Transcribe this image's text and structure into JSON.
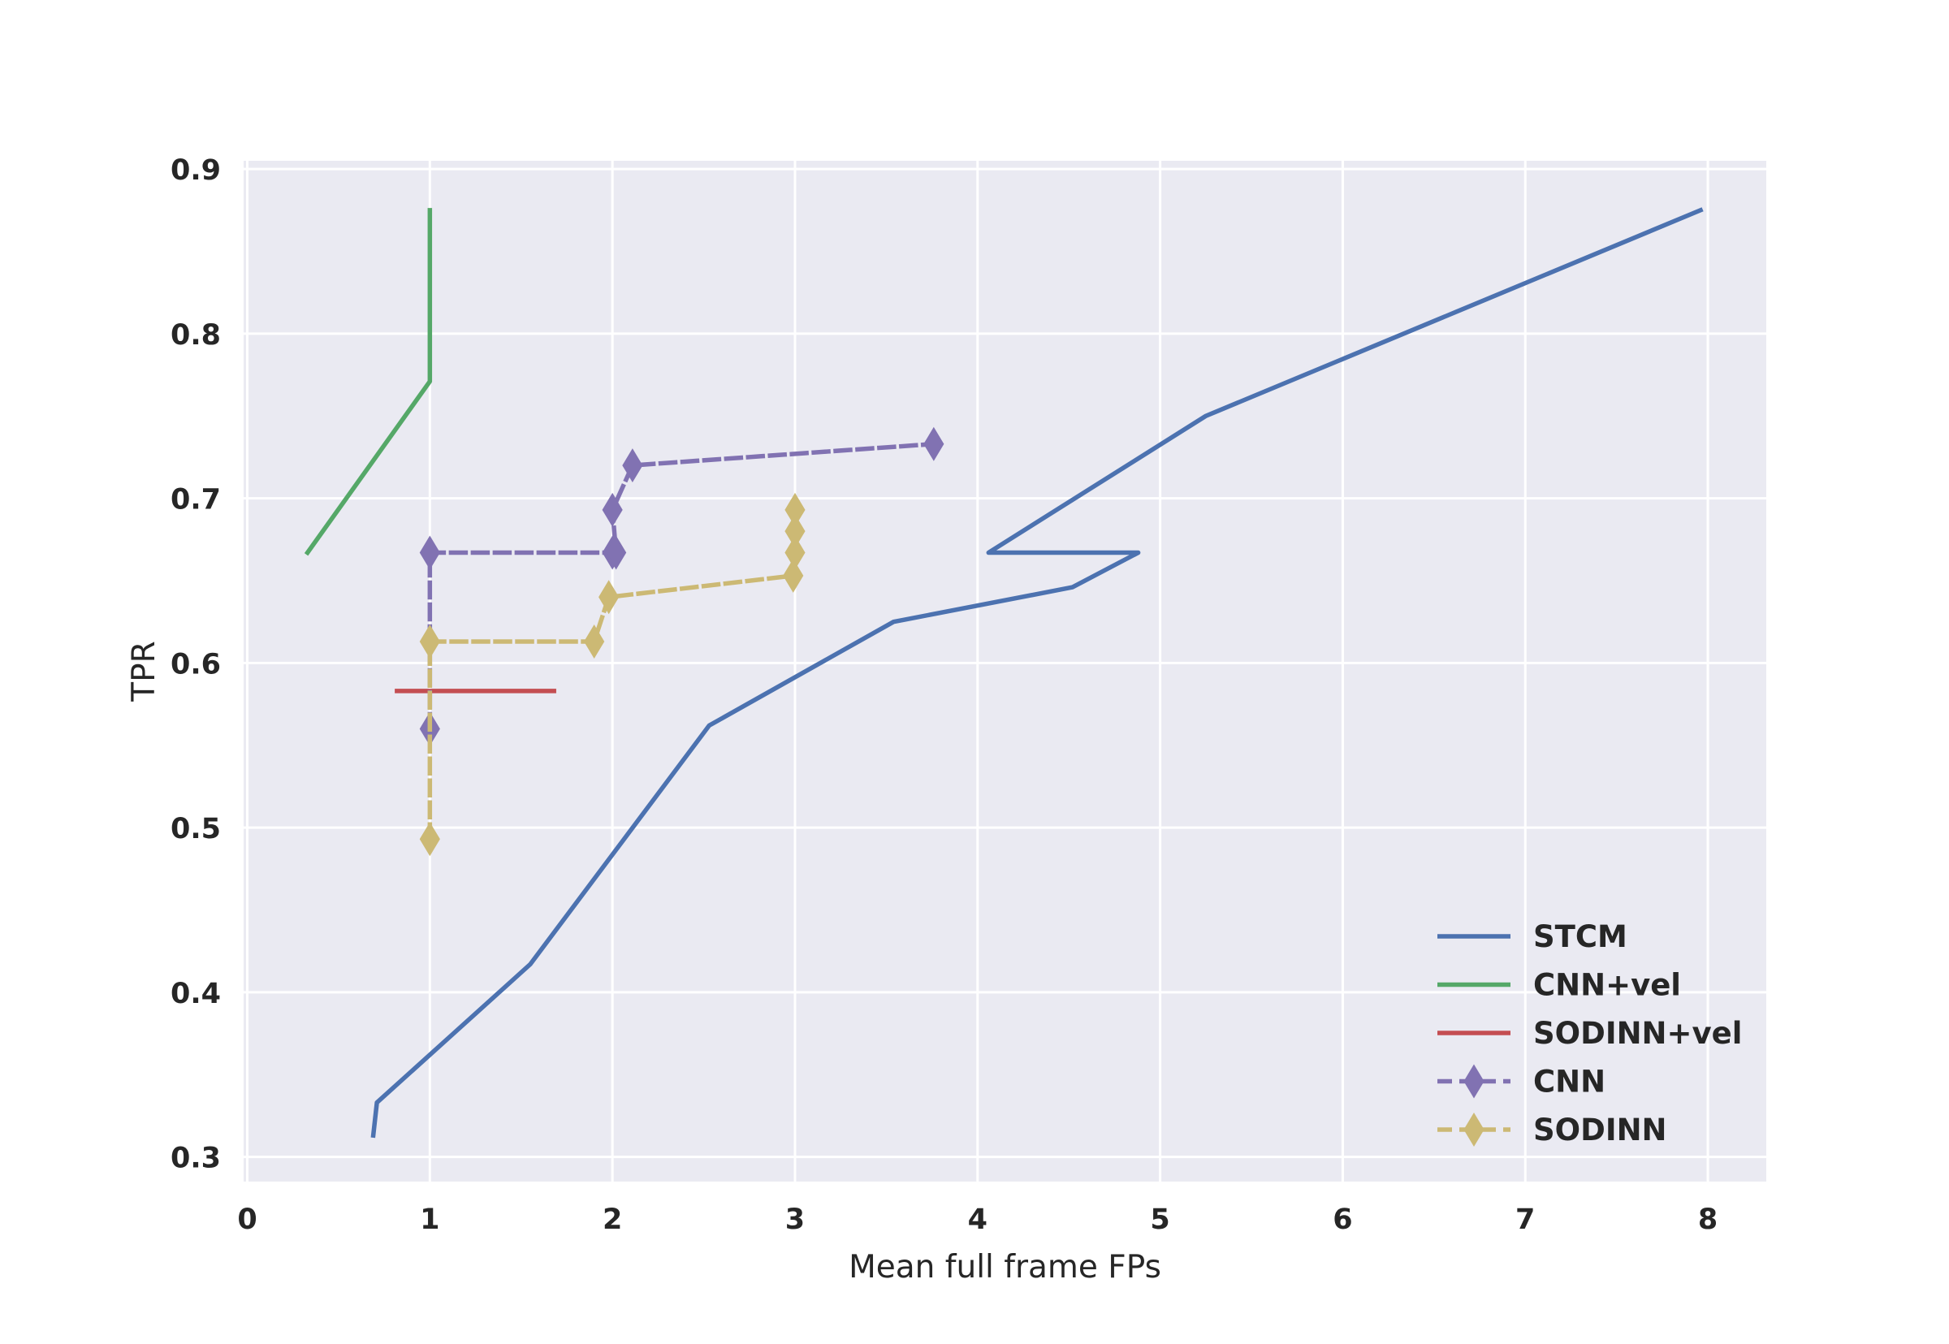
{
  "chart_data": {
    "type": "line",
    "title": "",
    "xlabel": "Mean full frame FPs",
    "ylabel": "TPR",
    "xlim": [
      -0.02,
      8.32
    ],
    "ylim": [
      0.285,
      0.905
    ],
    "xticks": [
      0,
      1,
      2,
      3,
      4,
      5,
      6,
      7,
      8
    ],
    "yticks": [
      0.3,
      0.4,
      0.5,
      0.6,
      0.7,
      0.8,
      0.9
    ],
    "xtick_labels": [
      "0",
      "1",
      "2",
      "3",
      "4",
      "5",
      "6",
      "7",
      "8"
    ],
    "ytick_labels": [
      "0.3",
      "0.4",
      "0.5",
      "0.6",
      "0.7",
      "0.8",
      "0.9"
    ],
    "grid": true,
    "legend_position": "bottom-right",
    "background_color": "#EAEAF2",
    "series": [
      {
        "name": "STCM",
        "color": "#4C72B0",
        "style": "solid",
        "marker": "none",
        "x": [
          0.69,
          0.71,
          1.55,
          2.53,
          3.54,
          4.52,
          4.88,
          4.06,
          5.25,
          7.96
        ],
        "y": [
          0.313,
          0.333,
          0.417,
          0.562,
          0.625,
          0.646,
          0.667,
          0.667,
          0.75,
          0.875
        ]
      },
      {
        "name": "CNN+vel",
        "color": "#55A868",
        "style": "solid",
        "marker": "none",
        "x": [
          0.33,
          1.0,
          1.0,
          1.0
        ],
        "y": [
          0.667,
          0.771,
          0.833,
          0.875
        ]
      },
      {
        "name": "SODINN+vel",
        "color": "#C44E52",
        "style": "solid",
        "marker": "none",
        "x": [
          0.82,
          1.68
        ],
        "y": [
          0.583,
          0.583
        ]
      },
      {
        "name": "CNN",
        "color": "#8172B2",
        "style": "dashed",
        "marker": "diamond",
        "x": [
          1.0,
          1.0,
          2.0,
          2.02,
          2.0,
          2.11,
          3.76
        ],
        "y": [
          0.56,
          0.667,
          0.667,
          0.667,
          0.693,
          0.72,
          0.733
        ]
      },
      {
        "name": "SODINN",
        "color": "#CCB974",
        "style": "dashed",
        "marker": "diamond",
        "x": [
          1.0,
          1.0,
          1.9,
          1.98,
          2.99,
          3.0,
          3.0,
          3.0
        ],
        "y": [
          0.493,
          0.613,
          0.613,
          0.64,
          0.653,
          0.667,
          0.68,
          0.693
        ]
      }
    ]
  }
}
